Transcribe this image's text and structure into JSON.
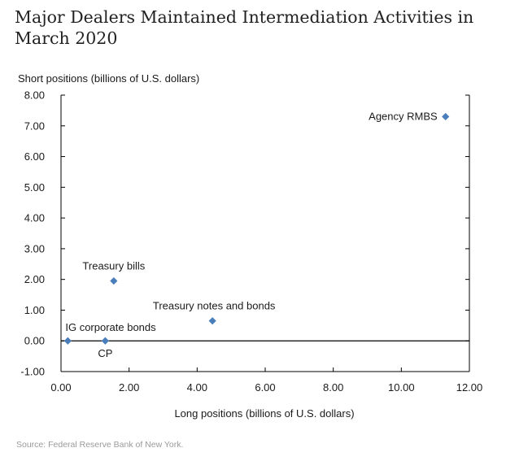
{
  "title": "Major Dealers Maintained Intermediation Activities in March 2020",
  "source": "Source: Federal Reserve Bank of New York.",
  "colors": {
    "point": "#4a7ebb",
    "axis": "#000000",
    "zero_line": "#000000"
  },
  "chart_data": {
    "type": "scatter",
    "title": "Major Dealers Maintained Intermediation Activities in March 2020",
    "xlabel": "Long positions (billions of U.S. dollars)",
    "ylabel": "Short positions (billions of U.S. dollars)",
    "xlim": [
      0,
      12
    ],
    "ylim": [
      -1,
      8
    ],
    "xticks": [
      "0.00",
      "2.00",
      "4.00",
      "6.00",
      "8.00",
      "10.00",
      "12.00"
    ],
    "yticks": [
      "8.00",
      "7.00",
      "6.00",
      "5.00",
      "4.00",
      "3.00",
      "2.00",
      "1.00",
      "0.00",
      "-1.00"
    ],
    "grid": false,
    "points": [
      {
        "label": "Agency RMBS",
        "x": 11.3,
        "y": 7.3
      },
      {
        "label": "Treasury bills",
        "x": 1.55,
        "y": 1.95
      },
      {
        "label": "Treasury notes and bonds",
        "x": 4.45,
        "y": 0.65
      },
      {
        "label": "IG corporate bonds",
        "x": 0.2,
        "y": 0.0
      },
      {
        "label": "CP",
        "x": 1.3,
        "y": 0.0
      }
    ]
  }
}
